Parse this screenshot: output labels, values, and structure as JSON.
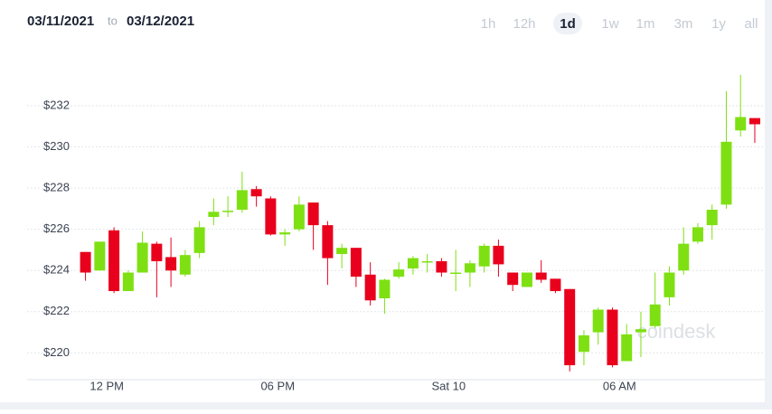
{
  "header": {
    "from": "03/11/2021",
    "to_word": "to",
    "to": "03/12/2021",
    "ranges": [
      "1h",
      "12h",
      "1d",
      "1w",
      "1m",
      "3m",
      "1y",
      "all"
    ],
    "selected": 2
  },
  "watermark": "coindesk",
  "chart_data": {
    "type": "candlestick",
    "up_color": "#7ee012",
    "down_color": "#e8001c",
    "x": [
      11.25,
      11.75,
      12.25,
      12.75,
      13.25,
      13.75,
      14.25,
      14.75,
      15.25,
      15.75,
      16.25,
      16.75,
      17.25,
      17.75,
      18.25,
      18.75,
      19.25,
      19.75,
      20.25,
      20.75,
      21.25,
      21.75,
      22.25,
      22.75,
      23.25,
      23.75,
      24.25,
      24.75,
      25.25,
      25.75,
      26.25,
      26.75,
      27.25,
      27.75,
      28.25,
      28.75,
      29.25,
      29.75,
      30.25,
      30.75,
      31.25,
      31.75,
      32.25,
      32.75,
      33.25,
      33.75,
      34.25,
      34.75
    ],
    "open": [
      224.9,
      224.0,
      225.95,
      223.0,
      223.9,
      225.3,
      224.65,
      223.8,
      224.85,
      226.6,
      226.85,
      226.95,
      227.95,
      227.5,
      225.75,
      226.0,
      227.3,
      226.2,
      224.8,
      225.1,
      223.8,
      222.65,
      223.7,
      224.1,
      224.45,
      224.45,
      223.9,
      223.9,
      224.2,
      225.2,
      223.9,
      223.2,
      223.9,
      223.6,
      223.1,
      220.05,
      221.0,
      222.1,
      219.6,
      221.0,
      221.3,
      222.7,
      224.0,
      225.4,
      226.2,
      227.2,
      230.8,
      231.4
    ],
    "high": [
      224.9,
      225.4,
      226.1,
      224.0,
      225.9,
      225.4,
      225.6,
      225.0,
      226.4,
      227.5,
      227.6,
      228.8,
      228.1,
      227.6,
      226.0,
      227.6,
      227.3,
      226.4,
      225.3,
      225.1,
      224.4,
      223.6,
      224.4,
      224.7,
      224.8,
      224.6,
      225.0,
      224.5,
      225.3,
      225.5,
      223.9,
      223.9,
      224.5,
      223.6,
      223.1,
      221.1,
      222.2,
      222.2,
      221.4,
      222.0,
      223.9,
      224.2,
      226.1,
      226.3,
      227.2,
      232.7,
      233.5,
      231.4
    ],
    "low": [
      223.5,
      224.0,
      222.9,
      223.0,
      223.9,
      222.7,
      223.2,
      223.7,
      224.6,
      226.2,
      226.6,
      226.8,
      227.1,
      225.7,
      225.2,
      225.9,
      225.0,
      223.3,
      224.1,
      223.2,
      222.3,
      221.9,
      223.6,
      223.8,
      223.9,
      223.7,
      223.0,
      223.2,
      223.9,
      223.7,
      223.0,
      223.2,
      223.4,
      222.9,
      219.1,
      219.4,
      220.4,
      219.3,
      219.6,
      219.8,
      221.2,
      222.3,
      223.8,
      225.3,
      225.5,
      227.0,
      230.5,
      230.2
    ],
    "close": [
      223.9,
      225.4,
      223.0,
      223.9,
      225.35,
      224.45,
      224.0,
      224.75,
      226.1,
      226.85,
      226.9,
      227.9,
      227.6,
      225.75,
      225.85,
      227.2,
      226.2,
      224.6,
      225.1,
      223.7,
      222.55,
      223.55,
      224.05,
      224.6,
      224.45,
      223.9,
      223.9,
      224.35,
      225.2,
      224.3,
      223.3,
      223.9,
      223.55,
      223.0,
      219.4,
      220.85,
      222.1,
      219.4,
      220.9,
      221.15,
      222.35,
      223.9,
      225.3,
      226.1,
      226.95,
      230.25,
      231.45,
      231.1
    ],
    "xlim": [
      9.2,
      35.1
    ],
    "xticks": [
      {
        "value": 12,
        "label": "12 PM"
      },
      {
        "value": 18,
        "label": "06 PM"
      },
      {
        "value": 24,
        "label": "Sat 10"
      },
      {
        "value": 30,
        "label": "06 AM"
      }
    ],
    "ylim": [
      218.7,
      234.5
    ],
    "yticks": [
      {
        "value": 220,
        "label": "$220"
      },
      {
        "value": 222,
        "label": "$222"
      },
      {
        "value": 224,
        "label": "$224"
      },
      {
        "value": 226,
        "label": "$226"
      },
      {
        "value": 228,
        "label": "$228"
      },
      {
        "value": 230,
        "label": "$230"
      },
      {
        "value": 232,
        "label": "$232"
      }
    ],
    "grid": true
  }
}
